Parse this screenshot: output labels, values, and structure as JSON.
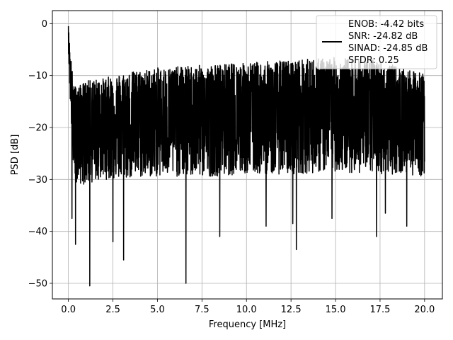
{
  "chart_data": {
    "type": "line",
    "xlabel": "Frequency [MHz]",
    "ylabel": "PSD [dB]",
    "xlim": [
      -0.9,
      21.0
    ],
    "ylim": [
      -53.0,
      2.5
    ],
    "xticks": [
      0.0,
      2.5,
      5.0,
      7.5,
      10.0,
      12.5,
      15.0,
      17.5,
      20.0
    ],
    "xtick_labels": [
      "0.0",
      "2.5",
      "5.0",
      "7.5",
      "10.0",
      "12.5",
      "15.0",
      "17.5",
      "20.0"
    ],
    "yticks": [
      0,
      -10,
      -20,
      -30,
      -40,
      -50
    ],
    "ytick_labels": [
      "0",
      "−10",
      "−20",
      "−30",
      "−40",
      "−50"
    ],
    "grid": true,
    "legend_position": "top-right",
    "line_color": "#000000",
    "legend": {
      "entries": [
        "ENOB: -4.42 bits",
        "SNR: -24.82 dB",
        "SINAD: -24.85 dB",
        "SFDR: 0.25"
      ]
    },
    "series": [
      {
        "x_start": 0.0,
        "x_end": 20.0,
        "envelope": {
          "x": [
            0.0,
            0.1,
            0.3,
            0.6,
            1.0,
            2.0,
            3.0,
            5.0,
            7.5,
            10.0,
            12.5,
            15.0,
            17.5,
            19.0,
            20.0
          ],
          "upper": [
            -0.5,
            -5.0,
            -12.0,
            -12.0,
            -11.0,
            -10.5,
            -9.5,
            -8.5,
            -8.0,
            -7.5,
            -7.0,
            -6.5,
            -7.0,
            -9.0,
            -9.5
          ],
          "median": [
            -3.0,
            -10.0,
            -17.0,
            -18.0,
            -18.0,
            -18.5,
            -18.5,
            -18.0,
            -18.0,
            -18.0,
            -17.5,
            -17.0,
            -17.0,
            -17.5,
            -17.5
          ],
          "lower": [
            -5.0,
            -15.0,
            -30.0,
            -31.0,
            -31.0,
            -30.0,
            -30.0,
            -29.5,
            -29.5,
            -29.0,
            -29.0,
            -28.5,
            -29.0,
            -29.0,
            -29.5
          ]
        },
        "dips": [
          {
            "x": 0.2,
            "y": -37.5
          },
          {
            "x": 0.4,
            "y": -42.5
          },
          {
            "x": 1.2,
            "y": -50.5
          },
          {
            "x": 2.5,
            "y": -42.0
          },
          {
            "x": 3.1,
            "y": -45.5
          },
          {
            "x": 6.6,
            "y": -50.0
          },
          {
            "x": 8.5,
            "y": -41.0
          },
          {
            "x": 11.1,
            "y": -39.0
          },
          {
            "x": 12.6,
            "y": -38.5
          },
          {
            "x": 12.8,
            "y": -43.5
          },
          {
            "x": 14.8,
            "y": -37.5
          },
          {
            "x": 17.3,
            "y": -41.0
          },
          {
            "x": 17.8,
            "y": -36.5
          },
          {
            "x": 19.0,
            "y": -39.0
          }
        ]
      }
    ]
  }
}
